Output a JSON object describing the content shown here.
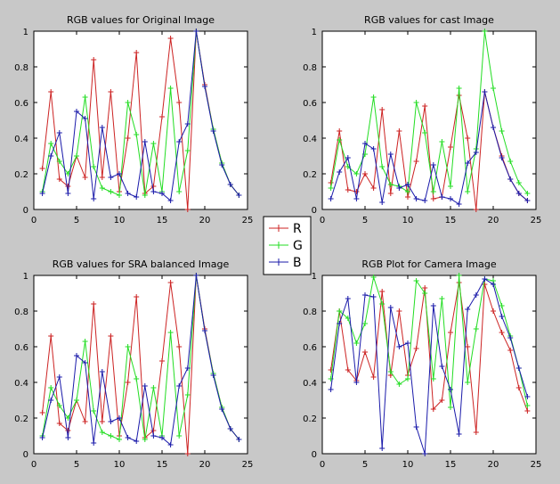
{
  "colors": {
    "R": "#cc2222",
    "G": "#22dd22",
    "B": "#1a1aaa",
    "background": "#c8c8c8",
    "axes_bg": "#ffffff"
  },
  "legend": {
    "placement": "center",
    "entries": [
      "R",
      "G",
      "B"
    ]
  },
  "chart_data": [
    {
      "type": "line",
      "title": "RGB values for Original Image",
      "xlim": [
        0,
        25
      ],
      "ylim": [
        0,
        1
      ],
      "xticks": [
        0,
        5,
        10,
        15,
        20,
        25
      ],
      "yticks": [
        0,
        0.2,
        0.4,
        0.6,
        0.8,
        1
      ],
      "ytick_labels": [
        "0",
        "0.2",
        "0.4",
        "0.6",
        "0.8",
        "1"
      ],
      "grid": false,
      "x": [
        1,
        2,
        3,
        4,
        5,
        6,
        7,
        8,
        9,
        10,
        11,
        12,
        13,
        14,
        15,
        16,
        17,
        18,
        19,
        20,
        21,
        22,
        23,
        24
      ],
      "series": [
        {
          "name": "R",
          "values": [
            0.23,
            0.66,
            0.17,
            0.13,
            0.3,
            0.18,
            0.84,
            0.18,
            0.66,
            0.1,
            0.4,
            0.88,
            0.09,
            0.13,
            0.52,
            0.96,
            0.6,
            0.0,
            1.0,
            0.7,
            0.45,
            0.26,
            0.14,
            0.08
          ]
        },
        {
          "name": "G",
          "values": [
            0.1,
            0.37,
            0.27,
            0.2,
            0.3,
            0.63,
            0.24,
            0.12,
            0.1,
            0.08,
            0.6,
            0.42,
            0.08,
            0.37,
            0.1,
            0.68,
            0.1,
            0.33,
            1.0,
            0.69,
            0.45,
            0.26,
            0.14,
            0.08
          ]
        },
        {
          "name": "B",
          "values": [
            0.09,
            0.3,
            0.43,
            0.09,
            0.55,
            0.51,
            0.06,
            0.46,
            0.18,
            0.2,
            0.09,
            0.07,
            0.38,
            0.1,
            0.09,
            0.05,
            0.38,
            0.48,
            1.0,
            0.69,
            0.44,
            0.25,
            0.14,
            0.08
          ]
        }
      ]
    },
    {
      "type": "line",
      "title": "RGB values for cast Image",
      "xlim": [
        0,
        25
      ],
      "ylim": [
        0,
        1
      ],
      "xticks": [
        0,
        5,
        10,
        15,
        20,
        25
      ],
      "yticks": [
        0,
        0.2,
        0.4,
        0.6,
        0.8,
        1
      ],
      "ytick_labels": [
        "0",
        "0.2",
        "0.4",
        "0.6",
        "0.8",
        "1"
      ],
      "grid": false,
      "x": [
        1,
        2,
        3,
        4,
        5,
        6,
        7,
        8,
        9,
        10,
        11,
        12,
        13,
        14,
        15,
        16,
        17,
        18,
        19,
        20,
        21,
        22,
        23,
        24
      ],
      "series": [
        {
          "name": "R",
          "values": [
            0.15,
            0.44,
            0.11,
            0.1,
            0.2,
            0.12,
            0.56,
            0.09,
            0.44,
            0.07,
            0.27,
            0.58,
            0.06,
            0.07,
            0.35,
            0.64,
            0.4,
            0.0,
            0.66,
            0.46,
            0.3,
            0.17,
            0.09,
            0.05
          ]
        },
        {
          "name": "G",
          "values": [
            0.12,
            0.39,
            0.24,
            0.2,
            0.31,
            0.63,
            0.24,
            0.14,
            0.13,
            0.1,
            0.6,
            0.43,
            0.1,
            0.38,
            0.13,
            0.68,
            0.1,
            0.34,
            1.0,
            0.68,
            0.44,
            0.27,
            0.15,
            0.09
          ]
        },
        {
          "name": "B",
          "values": [
            0.06,
            0.21,
            0.29,
            0.06,
            0.37,
            0.34,
            0.04,
            0.31,
            0.12,
            0.14,
            0.06,
            0.05,
            0.25,
            0.07,
            0.06,
            0.03,
            0.26,
            0.32,
            0.66,
            0.46,
            0.29,
            0.17,
            0.09,
            0.05
          ]
        }
      ]
    },
    {
      "type": "line",
      "title": "RGB values for SRA balanced Image",
      "xlim": [
        0,
        25
      ],
      "ylim": [
        0,
        1
      ],
      "xticks": [
        0,
        5,
        10,
        15,
        20,
        25
      ],
      "yticks": [
        0,
        0.2,
        0.4,
        0.6,
        0.8,
        1
      ],
      "ytick_labels": [
        "0",
        "0.2",
        "0.4",
        "0.6",
        "0.8",
        "1"
      ],
      "grid": false,
      "x": [
        1,
        2,
        3,
        4,
        5,
        6,
        7,
        8,
        9,
        10,
        11,
        12,
        13,
        14,
        15,
        16,
        17,
        18,
        19,
        20,
        21,
        22,
        23,
        24
      ],
      "series": [
        {
          "name": "R",
          "values": [
            0.23,
            0.66,
            0.17,
            0.13,
            0.3,
            0.18,
            0.84,
            0.18,
            0.66,
            0.1,
            0.4,
            0.88,
            0.09,
            0.13,
            0.52,
            0.96,
            0.6,
            0.0,
            1.0,
            0.7,
            0.45,
            0.26,
            0.14,
            0.08
          ]
        },
        {
          "name": "G",
          "values": [
            0.1,
            0.37,
            0.27,
            0.2,
            0.3,
            0.63,
            0.24,
            0.12,
            0.1,
            0.08,
            0.6,
            0.42,
            0.08,
            0.37,
            0.1,
            0.68,
            0.1,
            0.33,
            1.0,
            0.69,
            0.45,
            0.26,
            0.14,
            0.08
          ]
        },
        {
          "name": "B",
          "values": [
            0.09,
            0.3,
            0.43,
            0.09,
            0.55,
            0.51,
            0.06,
            0.46,
            0.18,
            0.2,
            0.09,
            0.07,
            0.38,
            0.1,
            0.09,
            0.05,
            0.38,
            0.48,
            1.0,
            0.69,
            0.44,
            0.25,
            0.14,
            0.08
          ]
        }
      ]
    },
    {
      "type": "line",
      "title": "RGB Plot for Camera Image",
      "xlim": [
        0,
        25
      ],
      "ylim": [
        0,
        1
      ],
      "xticks": [
        0,
        5,
        10,
        15,
        20,
        25
      ],
      "yticks": [
        0,
        0.2,
        0.4,
        0.6,
        0.8,
        1
      ],
      "ytick_labels": [
        "0",
        "0.2",
        "0.4",
        "0.6",
        "0.8",
        "1"
      ],
      "grid": false,
      "x": [
        1,
        2,
        3,
        4,
        5,
        6,
        7,
        8,
        9,
        10,
        11,
        12,
        13,
        14,
        15,
        16,
        17,
        18,
        19,
        20,
        21,
        22,
        23,
        24
      ],
      "series": [
        {
          "name": "R",
          "values": [
            0.47,
            0.8,
            0.47,
            0.41,
            0.57,
            0.43,
            0.91,
            0.44,
            0.8,
            0.44,
            0.59,
            0.93,
            0.25,
            0.3,
            0.68,
            0.96,
            0.6,
            0.12,
            0.95,
            0.8,
            0.68,
            0.58,
            0.37,
            0.24
          ]
        },
        {
          "name": "G",
          "values": [
            0.42,
            0.8,
            0.76,
            0.62,
            0.73,
            0.99,
            0.84,
            0.46,
            0.39,
            0.42,
            0.97,
            0.9,
            0.42,
            0.87,
            0.26,
            1.0,
            0.4,
            0.7,
            0.98,
            0.97,
            0.83,
            0.66,
            0.48,
            0.27
          ]
        },
        {
          "name": "B",
          "values": [
            0.36,
            0.73,
            0.87,
            0.4,
            0.89,
            0.88,
            0.03,
            0.82,
            0.6,
            0.62,
            0.15,
            0.0,
            0.83,
            0.49,
            0.36,
            0.11,
            0.81,
            0.89,
            0.98,
            0.95,
            0.77,
            0.65,
            0.48,
            0.32
          ]
        }
      ]
    }
  ]
}
